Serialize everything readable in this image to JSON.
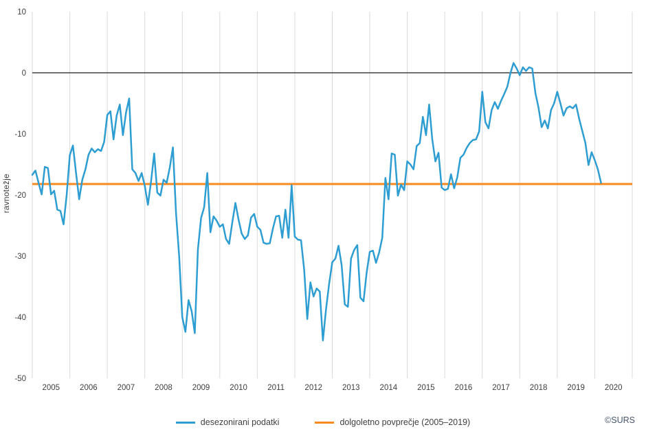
{
  "source_label": "©SURS",
  "colors": {
    "series_line": "#2D9DD2",
    "average_line": "#F8891F",
    "gridline": "#DADADA",
    "zero_line": "#404040",
    "tick_text": "#404040",
    "source_text": "#44546A",
    "background": "#FFFFFF"
  },
  "chart_data": {
    "type": "line",
    "title": "",
    "xlabel": "",
    "ylabel": "ravnotežje",
    "ylim": [
      -50,
      10
    ],
    "y_ticks": [
      10,
      0,
      -10,
      -20,
      -30,
      -40,
      -50
    ],
    "x_tick_labels": [
      "2005",
      "2006",
      "2007",
      "2008",
      "2009",
      "2010",
      "2011",
      "2012",
      "2013",
      "2014",
      "2015",
      "2016",
      "2017",
      "2018",
      "2019",
      "2020"
    ],
    "x_year_range": [
      2005,
      2021
    ],
    "grid": "vertical-year-gridlines-only",
    "zero_line": true,
    "legend_position": "bottom-center",
    "frequency": "monthly",
    "start": "2005-01",
    "end": "2020-03",
    "series": [
      {
        "name": "desezonirani podatki",
        "color": "#2D9DD2",
        "values": [
          -16.7,
          -16.0,
          -18.0,
          -19.9,
          -15.4,
          -15.6,
          -19.9,
          -19.3,
          -22.4,
          -22.6,
          -24.8,
          -20.0,
          -13.5,
          -11.9,
          -16.4,
          -20.7,
          -17.5,
          -15.8,
          -13.4,
          -12.4,
          -13.0,
          -12.5,
          -12.8,
          -11.3,
          -6.9,
          -6.3,
          -10.9,
          -7.0,
          -5.2,
          -10.2,
          -6.5,
          -4.2,
          -15.8,
          -16.4,
          -17.7,
          -16.4,
          -18.5,
          -21.6,
          -17.8,
          -13.2,
          -19.6,
          -20.1,
          -17.5,
          -18.0,
          -15.5,
          -12.2,
          -23.0,
          -30.0,
          -40.0,
          -42.4,
          -37.2,
          -39.0,
          -42.6,
          -28.9,
          -23.8,
          -22.0,
          -16.4,
          -26.1,
          -23.5,
          -24.2,
          -25.2,
          -24.8,
          -27.2,
          -28.0,
          -24.5,
          -21.3,
          -24.0,
          -26.3,
          -27.2,
          -26.6,
          -23.7,
          -23.1,
          -25.2,
          -25.7,
          -27.8,
          -28.0,
          -27.9,
          -25.5,
          -23.5,
          -23.4,
          -27.0,
          -22.4,
          -27.0,
          -18.4,
          -26.8,
          -27.3,
          -27.4,
          -32.2,
          -40.3,
          -34.3,
          -36.6,
          -35.3,
          -35.8,
          -43.8,
          -38.7,
          -34.5,
          -31.0,
          -30.4,
          -28.3,
          -31.5,
          -37.9,
          -38.3,
          -30.4,
          -29.0,
          -28.2,
          -36.8,
          -37.4,
          -32.7,
          -29.3,
          -29.1,
          -31.1,
          -29.4,
          -27.0,
          -17.2,
          -20.7,
          -13.2,
          -13.4,
          -20.1,
          -18.3,
          -19.2,
          -14.5,
          -15.0,
          -15.8,
          -12.0,
          -11.5,
          -7.2,
          -10.2,
          -5.2,
          -10.9,
          -14.5,
          -13.1,
          -18.8,
          -19.2,
          -19.0,
          -16.6,
          -18.9,
          -17.1,
          -13.9,
          -13.4,
          -12.3,
          -11.5,
          -11.0,
          -10.9,
          -9.6,
          -3.1,
          -8.1,
          -9.1,
          -6.1,
          -4.8,
          -5.9,
          -4.6,
          -3.5,
          -2.3,
          -0.1,
          1.6,
          0.7,
          -0.4,
          0.9,
          0.3,
          0.9,
          0.7,
          -3.3,
          -5.7,
          -8.9,
          -7.8,
          -9.1,
          -6.1,
          -5.0,
          -3.1,
          -5.0,
          -7.0,
          -5.8,
          -5.5,
          -5.8,
          -5.2,
          -7.5,
          -9.5,
          -11.5,
          -15.1,
          -13.0,
          -14.3,
          -15.8,
          -18.0
        ]
      },
      {
        "name": "dolgoletno povprečje (2005–2019)",
        "color": "#F8891F",
        "type": "constant-line",
        "value": -18.2
      }
    ]
  }
}
